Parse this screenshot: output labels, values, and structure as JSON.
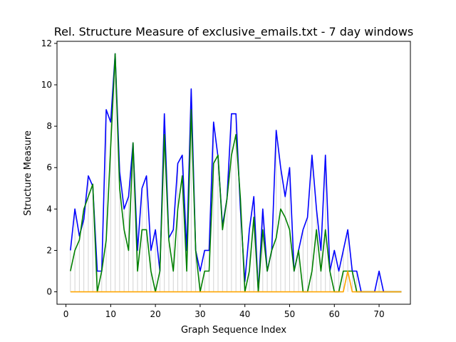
{
  "chart_data": {
    "type": "line",
    "title": "Rel. Structure Measure of exclusive_emails.txt - 7 day windows",
    "xlabel": "Graph Sequence Index",
    "ylabel": "Structure Measure",
    "xlim": [
      -2,
      77
    ],
    "ylim": [
      -0.6,
      12.1
    ],
    "xticks": [
      0,
      10,
      20,
      30,
      40,
      50,
      60,
      70
    ],
    "yticks": [
      0,
      2,
      4,
      6,
      8,
      10,
      12
    ],
    "grid": false,
    "colors": {
      "blue": "#0000ff",
      "green": "#008000",
      "orange": "#ffa500",
      "stems": "#d3d3d3"
    },
    "x": [
      1,
      2,
      3,
      4,
      5,
      6,
      7,
      8,
      9,
      10,
      11,
      12,
      13,
      14,
      15,
      16,
      17,
      18,
      19,
      20,
      21,
      22,
      23,
      24,
      25,
      26,
      27,
      28,
      29,
      30,
      31,
      32,
      33,
      34,
      35,
      36,
      37,
      38,
      39,
      40,
      41,
      42,
      43,
      44,
      45,
      46,
      47,
      48,
      49,
      50,
      51,
      52,
      53,
      54,
      55,
      56,
      57,
      58,
      59,
      60,
      61,
      62,
      63,
      64,
      65,
      66,
      67,
      68,
      69,
      70,
      71,
      72,
      73,
      74,
      75
    ],
    "series": [
      {
        "color": "#0000ff",
        "stems": true,
        "values": [
          2,
          4,
          2.7,
          3.5,
          5.6,
          5.1,
          1,
          1,
          8.8,
          8.2,
          11.5,
          5.8,
          4,
          4.6,
          7.2,
          2,
          5,
          5.6,
          2,
          3,
          1,
          8.6,
          2.6,
          3,
          6.2,
          6.6,
          2,
          9.8,
          2,
          1,
          2,
          2,
          8.2,
          6.5,
          3.2,
          4.5,
          8.6,
          8.6,
          4,
          0.5,
          3,
          4.6,
          0,
          4,
          1,
          2,
          7.8,
          6,
          4.6,
          6,
          1,
          2,
          3,
          3.6,
          6.6,
          4,
          2,
          6.6,
          1,
          2,
          1,
          2,
          3,
          1,
          1,
          0,
          0,
          0,
          0,
          1,
          0,
          0,
          0,
          0,
          0
        ]
      },
      {
        "color": "#008000",
        "values": [
          1,
          2,
          2.5,
          4,
          4.6,
          5.2,
          0,
          1,
          2.5,
          7,
          11.5,
          5,
          3,
          2,
          7.2,
          1,
          3,
          3,
          1,
          0,
          1,
          7.6,
          2.5,
          1,
          4,
          5.6,
          1,
          8.8,
          2,
          0,
          1,
          1,
          6.2,
          6.6,
          3,
          4.5,
          6.6,
          7.6,
          4.5,
          0,
          1,
          3.6,
          0,
          3,
          1,
          2,
          2.6,
          4,
          3.6,
          3,
          1,
          2,
          0,
          0,
          1,
          3,
          1,
          3,
          1,
          0,
          0,
          1,
          1,
          1,
          0,
          0,
          0,
          0,
          0,
          0,
          0,
          0,
          0,
          0,
          0
        ]
      },
      {
        "color": "#ffa500",
        "values": [
          0,
          0,
          0,
          0,
          0,
          0,
          0,
          0,
          0,
          0,
          0,
          0,
          0,
          0,
          0,
          0,
          0,
          0,
          0,
          0,
          0,
          0,
          0,
          0,
          0,
          0,
          0,
          0,
          0,
          0,
          0,
          0,
          0,
          0,
          0,
          0,
          0,
          0,
          0,
          0,
          0,
          0,
          0,
          0,
          0,
          0,
          0,
          0,
          0,
          0,
          0,
          0,
          0,
          0,
          0,
          0,
          0,
          0,
          0,
          0,
          0,
          0,
          1,
          0,
          0,
          0,
          0,
          0,
          0,
          0,
          0,
          0,
          0,
          0,
          0
        ]
      }
    ]
  }
}
